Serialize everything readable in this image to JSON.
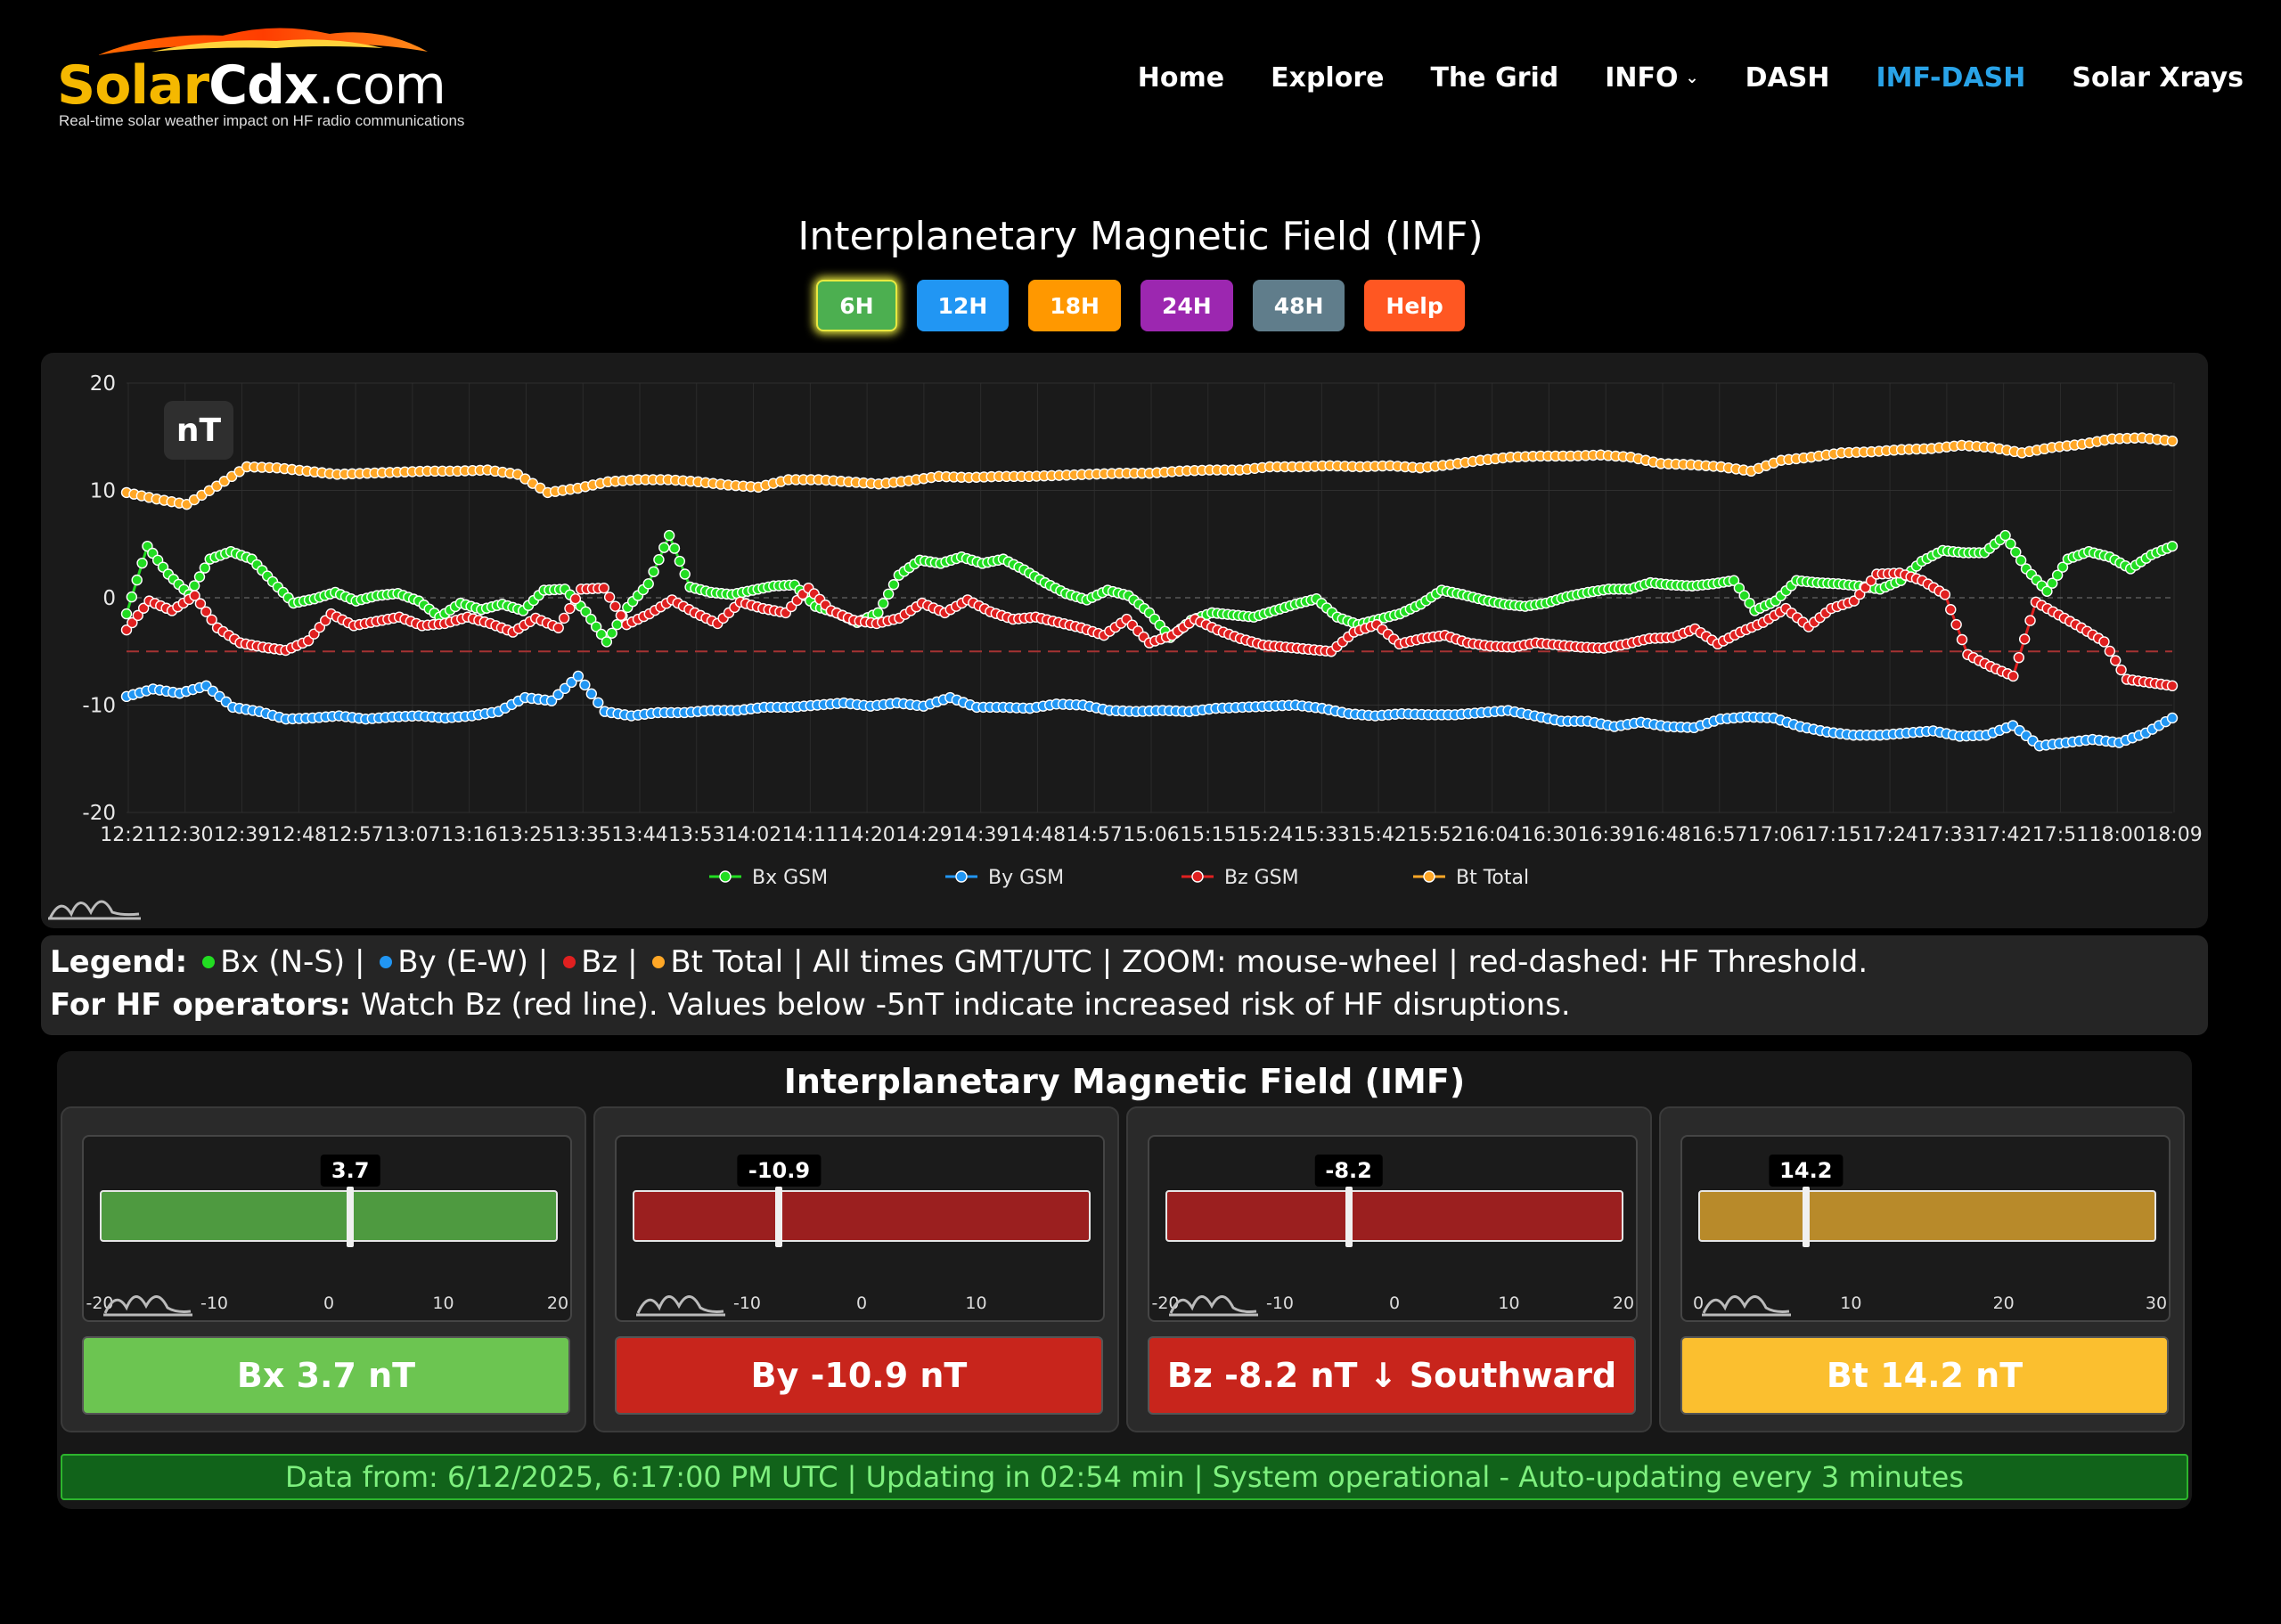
{
  "header": {
    "logo_solar": "Solar",
    "logo_cdx": "Cdx",
    "logo_com": ".com",
    "tagline": "Real-time solar weather impact on HF radio communications",
    "nav": [
      {
        "label": "Home",
        "active": false
      },
      {
        "label": "Explore",
        "active": false
      },
      {
        "label": "The Grid",
        "active": false
      },
      {
        "label": "INFO",
        "active": false,
        "dropdown": true
      },
      {
        "label": "DASH",
        "active": false
      },
      {
        "label": "IMF-DASH",
        "active": true
      },
      {
        "label": "Solar Xrays",
        "active": false
      }
    ]
  },
  "page_title": "Interplanetary Magnetic Field (IMF)",
  "range_buttons": [
    {
      "label": "6H",
      "color": "#4caf50",
      "selected": true
    },
    {
      "label": "12H",
      "color": "#2196f3",
      "selected": false
    },
    {
      "label": "18H",
      "color": "#ff9800",
      "selected": false
    },
    {
      "label": "24H",
      "color": "#9c27b0",
      "selected": false
    },
    {
      "label": "48H",
      "color": "#607d8b",
      "selected": false
    },
    {
      "label": "Help",
      "color": "#ff5722",
      "selected": false
    }
  ],
  "chart_unit_badge": "nT",
  "chart_data": {
    "type": "line",
    "ylim": [
      -20,
      20
    ],
    "yticks": [
      20,
      10,
      0,
      -10,
      -20
    ],
    "threshold": -5,
    "grid": true,
    "legend_position": "bottom",
    "x_tick_labels": [
      "12:21",
      "12:30",
      "12:39",
      "12:48",
      "12:57",
      "13:07",
      "13:16",
      "13:25",
      "13:35",
      "13:44",
      "13:53",
      "14:02",
      "14:11",
      "14:20",
      "14:29",
      "14:39",
      "14:48",
      "14:57",
      "15:06",
      "15:15",
      "15:24",
      "15:33",
      "15:42",
      "15:52",
      "16:04",
      "16:30",
      "16:39",
      "16:48",
      "16:57",
      "17:06",
      "17:15",
      "17:24",
      "17:33",
      "17:42",
      "17:51",
      "18:00",
      "18:09"
    ],
    "series": [
      {
        "name": "Bx GSM",
        "color": "#22dd22",
        "values": [
          -1.5,
          4.8,
          2.2,
          0.3,
          3.6,
          4.3,
          3.6,
          1.5,
          -0.5,
          -0.1,
          0.5,
          -0.3,
          0.2,
          0.4,
          -0.3,
          -1.8,
          -0.5,
          -1.1,
          -0.6,
          -1.2,
          0.7,
          0.8,
          -1.3,
          -4.1,
          -0.9,
          1.3,
          5.8,
          1.0,
          0.5,
          0.3,
          0.7,
          1.1,
          1.2,
          -0.8,
          -1.4,
          -2.3,
          -1.4,
          2.1,
          3.5,
          3.2,
          3.8,
          3.2,
          3.6,
          2.6,
          1.4,
          0.4,
          -0.2,
          0.7,
          0.2,
          -1.4,
          -3.7,
          -2.1,
          -1.4,
          -1.6,
          -1.8,
          -1.2,
          -0.6,
          -0.1,
          -1.8,
          -2.5,
          -2.0,
          -1.5,
          -0.6,
          0.7,
          0.3,
          -0.2,
          -0.6,
          -0.8,
          -0.5,
          0.1,
          0.5,
          0.8,
          0.8,
          1.4,
          1.2,
          1.1,
          1.3,
          1.6,
          -1.2,
          -0.3,
          1.6,
          1.4,
          1.3,
          1.1,
          0.8,
          1.6,
          3.4,
          4.4,
          4.2,
          4.2,
          5.8,
          2.7,
          0.6,
          3.6,
          4.3,
          3.8,
          2.7,
          4.0,
          4.8
        ]
      },
      {
        "name": "By GSM",
        "color": "#2196f3",
        "values": [
          -9.2,
          -8.5,
          -8.9,
          -8.2,
          -10.2,
          -10.6,
          -11.3,
          -11.2,
          -11.0,
          -11.3,
          -11.1,
          -11.0,
          -11.2,
          -11.0,
          -10.6,
          -9.3,
          -9.6,
          -7.3,
          -10.6,
          -11.0,
          -10.7,
          -10.7,
          -10.5,
          -10.5,
          -10.2,
          -10.2,
          -10.0,
          -9.8,
          -10.1,
          -9.8,
          -10.1,
          -9.3,
          -10.2,
          -10.2,
          -10.3,
          -9.9,
          -10.0,
          -10.5,
          -10.6,
          -10.5,
          -10.6,
          -10.3,
          -10.2,
          -10.1,
          -10.0,
          -10.3,
          -10.8,
          -11.0,
          -10.8,
          -10.9,
          -10.9,
          -10.7,
          -10.5,
          -11.0,
          -11.5,
          -11.5,
          -12.0,
          -11.6,
          -12.0,
          -12.1,
          -11.3,
          -11.1,
          -11.2,
          -12.0,
          -12.5,
          -12.8,
          -12.8,
          -12.6,
          -12.4,
          -12.9,
          -12.8,
          -11.9,
          -13.8,
          -13.5,
          -13.2,
          -13.5,
          -12.6,
          -11.2
        ]
      },
      {
        "name": "Bz GSM",
        "color": "#e02020",
        "values": [
          -3.0,
          -0.3,
          -1.2,
          0.2,
          -2.8,
          -4.2,
          -4.6,
          -4.9,
          -4.0,
          -1.5,
          -2.6,
          -2.2,
          -1.8,
          -2.6,
          -2.4,
          -1.8,
          -2.4,
          -3.2,
          -1.9,
          -2.8,
          0.8,
          0.9,
          -2.5,
          -1.5,
          -0.2,
          -1.4,
          -2.4,
          -0.4,
          -1.0,
          -1.4,
          0.9,
          -1.2,
          -2.1,
          -2.4,
          -1.9,
          -0.5,
          -1.4,
          -0.2,
          -1.3,
          -2.0,
          -1.8,
          -2.3,
          -2.8,
          -3.5,
          -2.0,
          -4.2,
          -3.5,
          -2.0,
          -3.0,
          -3.8,
          -4.4,
          -4.6,
          -4.8,
          -5.0,
          -3.2,
          -2.5,
          -4.3,
          -3.8,
          -3.5,
          -4.2,
          -4.5,
          -4.6,
          -4.2,
          -4.4,
          -4.6,
          -4.7,
          -4.3,
          -3.8,
          -3.7,
          -2.9,
          -4.3,
          -3.2,
          -2.3,
          -1.0,
          -2.7,
          -1.0,
          -0.3,
          2.2,
          2.3,
          1.6,
          0.3,
          -5.3,
          -6.4,
          -7.3,
          -0.4,
          -1.6,
          -2.8,
          -4.1,
          -7.6,
          -7.9,
          -8.2
        ]
      },
      {
        "name": "Bt Total",
        "color": "#ffa726",
        "values": [
          9.8,
          9.2,
          8.7,
          10.4,
          12.2,
          12.1,
          11.8,
          11.5,
          11.6,
          11.7,
          11.8,
          11.8,
          11.9,
          11.5,
          9.8,
          10.2,
          10.8,
          11.0,
          11.0,
          10.8,
          10.5,
          10.3,
          11.0,
          11.0,
          10.8,
          10.6,
          10.9,
          11.3,
          11.2,
          11.3,
          11.3,
          11.4,
          11.5,
          11.6,
          11.6,
          11.8,
          11.9,
          11.9,
          12.2,
          12.2,
          12.3,
          12.2,
          12.3,
          12.1,
          12.4,
          12.8,
          13.1,
          13.2,
          13.2,
          13.3,
          13.1,
          12.5,
          12.4,
          12.2,
          11.8,
          12.8,
          13.1,
          13.5,
          13.6,
          13.8,
          13.9,
          14.2,
          14.0,
          13.5,
          14.0,
          14.3,
          14.8,
          14.9,
          14.6
        ]
      }
    ]
  },
  "legend_box": {
    "line1_bold": "Legend:",
    "bx": "Bx (N-S) |",
    "by": "By (E-W) |",
    "bz": "Bz |",
    "bt": "Bt Total | All times GMT/UTC | ZOOM: mouse-wheel | red-dashed: HF Threshold.",
    "line2_bold": "For HF operators:",
    "line2": "Watch Bz (red line). Values below -5nT indicate increased risk of HF disruptions."
  },
  "widget": {
    "title": "Interplanetary Magnetic Field (IMF)",
    "gauges": [
      {
        "name": "Bx",
        "value": 3.7,
        "display": "3.7",
        "range": [
          -20,
          20
        ],
        "ticks": [
          "-20",
          "-10",
          "0",
          "10",
          "20"
        ],
        "bar_color": "#4e9a40",
        "button_label": "Bx 3.7 nT",
        "button_color": "#6cc551",
        "marker_fraction": 0.547
      },
      {
        "name": "By",
        "value": -10.9,
        "display": "-10.9",
        "range": [
          -20,
          20
        ],
        "ticks": [
          "-10",
          "0",
          "10"
        ],
        "bar_color": "#9b1f1f",
        "button_label": "By -10.9 nT",
        "button_color": "#c8251c",
        "marker_fraction": 0.32
      },
      {
        "name": "Bz",
        "value": -8.2,
        "display": "-8.2",
        "range": [
          -20,
          20
        ],
        "ticks": [
          "-20",
          "-10",
          "0",
          "10",
          "20"
        ],
        "bar_color": "#9b1f1f",
        "button_label": "Bz -8.2 nT ↓ Southward",
        "button_color": "#c8251c",
        "marker_fraction": 0.4
      },
      {
        "name": "Bt",
        "value": 14.2,
        "display": "14.2",
        "range": [
          0,
          30
        ],
        "ticks": [
          "0",
          "10",
          "20",
          "30"
        ],
        "bar_color": "#b88a2a",
        "button_label": "Bt 14.2 nT",
        "button_color": "#fbbf2f",
        "marker_fraction": 0.235
      }
    ],
    "status": "Data from: 6/12/2025, 6:17:00 PM UTC | Updating in 02:54 min | System operational - Auto-updating every 3 minutes"
  }
}
